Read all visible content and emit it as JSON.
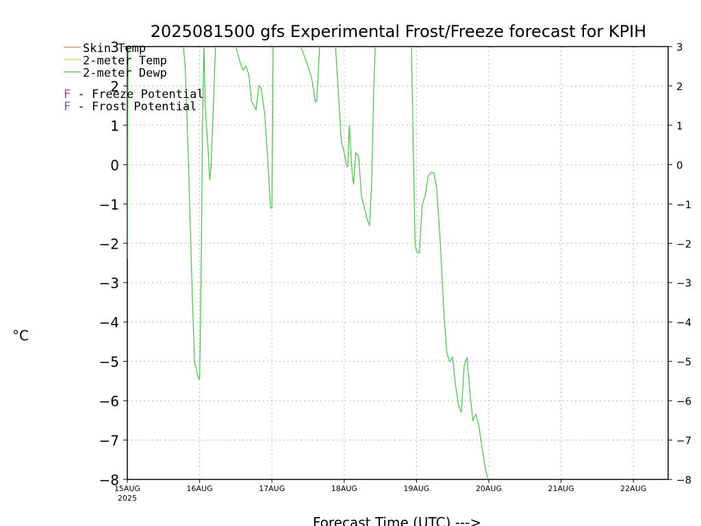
{
  "chart_data": {
    "type": "line",
    "title": "2025081500 gfs Experimental Frost/Freeze forecast for KPIH",
    "xlabel": "Forecast Time (UTC) --->",
    "ylabel": "°C",
    "ylim": [
      -8,
      3
    ],
    "yticks": [
      3,
      2,
      1,
      0,
      -1,
      -2,
      -3,
      -4,
      -5,
      -6,
      -7,
      -8
    ],
    "xlim_days": [
      0,
      7.6
    ],
    "x_ticks": [
      {
        "label": "15AUG",
        "sub": "2025",
        "day": 0
      },
      {
        "label": "16AUG",
        "sub": "",
        "day": 1
      },
      {
        "label": "17AUG",
        "sub": "",
        "day": 2
      },
      {
        "label": "18AUG",
        "sub": "",
        "day": 3
      },
      {
        "label": "19AUG",
        "sub": "",
        "day": 4
      },
      {
        "label": "20AUG",
        "sub": "",
        "day": 5
      },
      {
        "label": "21AUG",
        "sub": "",
        "day": 6
      },
      {
        "label": "22AUG",
        "sub": "",
        "day": 7
      }
    ],
    "grid": true,
    "legend": [
      {
        "label": "Skin Temp",
        "color": "#e8842e"
      },
      {
        "label": "2-meter Temp",
        "color": "#e6c84a"
      },
      {
        "label": "2-meter Dewp",
        "color": "#33cc33"
      }
    ],
    "potential_legend": [
      {
        "marker": "F",
        "text": " - Freeze Potential",
        "color": "#cc2ea8"
      },
      {
        "marker": "F",
        "text": " - Frost Potential",
        "color": "#5a5adc"
      }
    ],
    "series": [
      {
        "name": "2-meter Dewp",
        "color": "#33cc33",
        "points": [
          [
            0.0,
            -2.4
          ],
          [
            0.01,
            3.0
          ],
          [
            0.02,
            4.0
          ],
          [
            0.74,
            4.0
          ],
          [
            0.78,
            2.9
          ],
          [
            0.8,
            2.5
          ],
          [
            0.83,
            1.0
          ],
          [
            0.87,
            -1.5
          ],
          [
            0.9,
            -3.4
          ],
          [
            0.93,
            -5.0
          ],
          [
            0.98,
            -5.4
          ],
          [
            1.0,
            -5.45
          ],
          [
            1.02,
            -3.0
          ],
          [
            1.04,
            1.0
          ],
          [
            1.06,
            3.0
          ],
          [
            1.08,
            1.4
          ],
          [
            1.12,
            0.3
          ],
          [
            1.14,
            -0.4
          ],
          [
            1.16,
            0.0
          ],
          [
            1.18,
            1.0
          ],
          [
            1.2,
            2.0
          ],
          [
            1.22,
            3.0
          ],
          [
            1.23,
            4.0
          ],
          [
            1.45,
            4.0
          ],
          [
            1.5,
            3.0
          ],
          [
            1.56,
            2.6
          ],
          [
            1.6,
            2.4
          ],
          [
            1.64,
            2.5
          ],
          [
            1.68,
            2.3
          ],
          [
            1.72,
            1.6
          ],
          [
            1.78,
            1.4
          ],
          [
            1.82,
            2.0
          ],
          [
            1.85,
            1.95
          ],
          [
            1.9,
            1.3
          ],
          [
            1.94,
            0.2
          ],
          [
            1.98,
            -1.1
          ],
          [
            2.0,
            -1.1
          ],
          [
            2.01,
            1.0
          ],
          [
            2.02,
            4.0
          ],
          [
            2.35,
            4.0
          ],
          [
            2.4,
            3.0
          ],
          [
            2.48,
            2.6
          ],
          [
            2.55,
            2.2
          ],
          [
            2.6,
            1.6
          ],
          [
            2.62,
            1.6
          ],
          [
            2.66,
            3.0
          ],
          [
            2.68,
            4.0
          ],
          [
            2.85,
            4.0
          ],
          [
            2.88,
            3.0
          ],
          [
            2.92,
            1.8
          ],
          [
            2.96,
            0.6
          ],
          [
            3.0,
            0.3
          ],
          [
            3.03,
            0.0
          ],
          [
            3.05,
            -0.05
          ],
          [
            3.07,
            1.0
          ],
          [
            3.09,
            0.4
          ],
          [
            3.11,
            -0.2
          ],
          [
            3.13,
            -0.5
          ],
          [
            3.16,
            0.3
          ],
          [
            3.2,
            0.2
          ],
          [
            3.24,
            -0.8
          ],
          [
            3.28,
            -1.1
          ],
          [
            3.32,
            -1.4
          ],
          [
            3.35,
            -1.55
          ],
          [
            3.38,
            -0.5
          ],
          [
            3.41,
            2.0
          ],
          [
            3.43,
            3.0
          ],
          [
            3.44,
            4.0
          ],
          [
            3.92,
            4.0
          ],
          [
            3.95,
            1.0
          ],
          [
            3.98,
            -2.0
          ],
          [
            4.0,
            -2.2
          ],
          [
            4.04,
            -2.25
          ],
          [
            4.08,
            -1.0
          ],
          [
            4.12,
            -0.8
          ],
          [
            4.16,
            -0.3
          ],
          [
            4.2,
            -0.2
          ],
          [
            4.24,
            -0.2
          ],
          [
            4.28,
            -0.6
          ],
          [
            4.33,
            -2.0
          ],
          [
            4.38,
            -3.8
          ],
          [
            4.42,
            -4.8
          ],
          [
            4.46,
            -5.0
          ],
          [
            4.5,
            -4.9
          ],
          [
            4.54,
            -5.6
          ],
          [
            4.58,
            -6.1
          ],
          [
            4.62,
            -6.3
          ],
          [
            4.66,
            -5.1
          ],
          [
            4.7,
            -4.9
          ],
          [
            4.74,
            -5.8
          ],
          [
            4.78,
            -6.5
          ],
          [
            4.82,
            -6.35
          ],
          [
            4.86,
            -6.6
          ],
          [
            4.9,
            -7.1
          ],
          [
            4.95,
            -7.7
          ],
          [
            4.99,
            -8.0
          ]
        ]
      }
    ]
  }
}
